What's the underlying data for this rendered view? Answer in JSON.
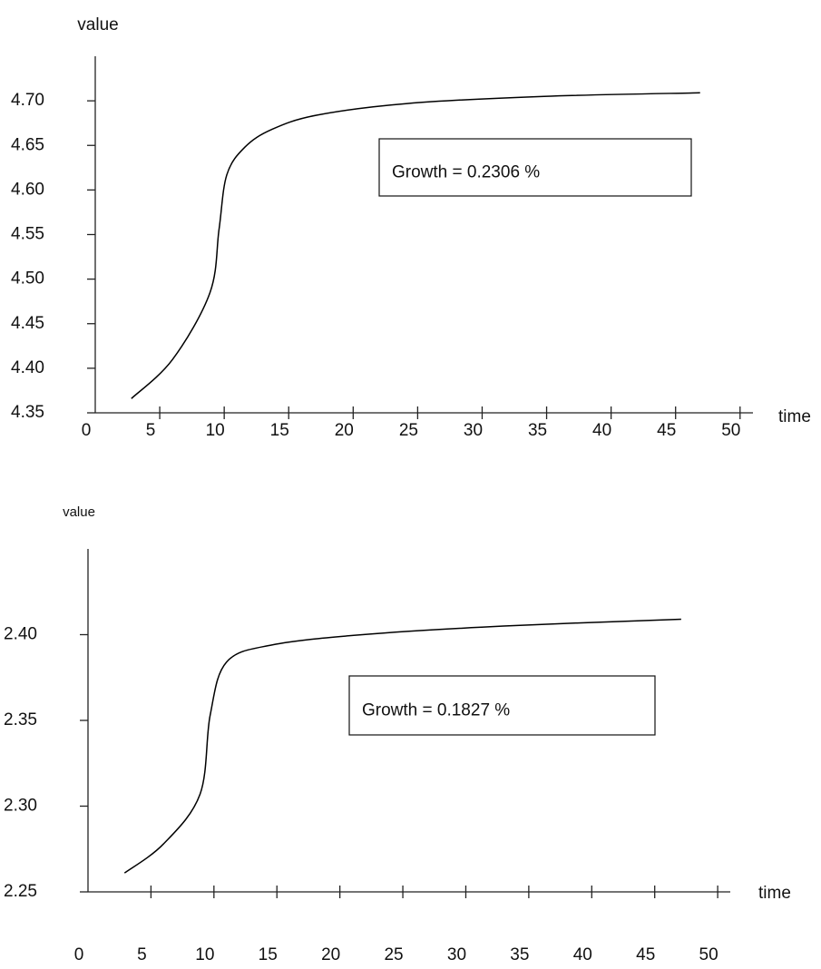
{
  "chart_data": [
    {
      "type": "line",
      "y_label": "value",
      "x_label": "time",
      "annotation": "Growth = 0.2306 %",
      "color": "#000000",
      "x": [
        2.8,
        6,
        8.9,
        9.6,
        10.2,
        11.6,
        13.7,
        17.2,
        24.2,
        34.8,
        46.9
      ],
      "values": [
        4.366,
        4.41,
        4.485,
        4.556,
        4.617,
        4.648,
        4.668,
        4.684,
        4.697,
        4.705,
        4.709
      ],
      "xlim": [
        0,
        51
      ],
      "ylim": [
        4.35,
        4.75
      ],
      "xticks": [
        0,
        5,
        10,
        15,
        20,
        25,
        30,
        35,
        40,
        45,
        50
      ],
      "yticks": [
        {
          "value": 4.35,
          "label": "4.35"
        },
        {
          "value": 4.4,
          "label": "4.40"
        },
        {
          "value": 4.45,
          "label": "4.45"
        },
        {
          "value": 4.5,
          "label": "4.50"
        },
        {
          "value": 4.55,
          "label": "4.55"
        },
        {
          "value": 4.6,
          "label": "4.60"
        },
        {
          "value": 4.65,
          "label": "4.65"
        },
        {
          "value": 4.7,
          "label": "4.70"
        }
      ]
    },
    {
      "type": "line",
      "y_label": "value",
      "x_label": "time",
      "annotation": "Growth = 0.1827 %",
      "color": "#000000",
      "x": [
        2.9,
        6,
        8.9,
        9.7,
        11,
        14.6,
        21.8,
        33,
        47.1
      ],
      "values": [
        2.261,
        2.278,
        2.307,
        2.353,
        2.384,
        2.394,
        2.4,
        2.405,
        2.409
      ],
      "xlim": [
        0,
        51
      ],
      "ylim": [
        2.25,
        2.45
      ],
      "xticks": [
        0,
        5,
        10,
        15,
        20,
        25,
        30,
        35,
        40,
        45,
        50
      ],
      "yticks": [
        {
          "value": 2.25,
          "label": "2.25"
        },
        {
          "value": 2.3,
          "label": "2.30"
        },
        {
          "value": 2.35,
          "label": "2.35"
        },
        {
          "value": 2.4,
          "label": "2.40"
        }
      ]
    }
  ]
}
